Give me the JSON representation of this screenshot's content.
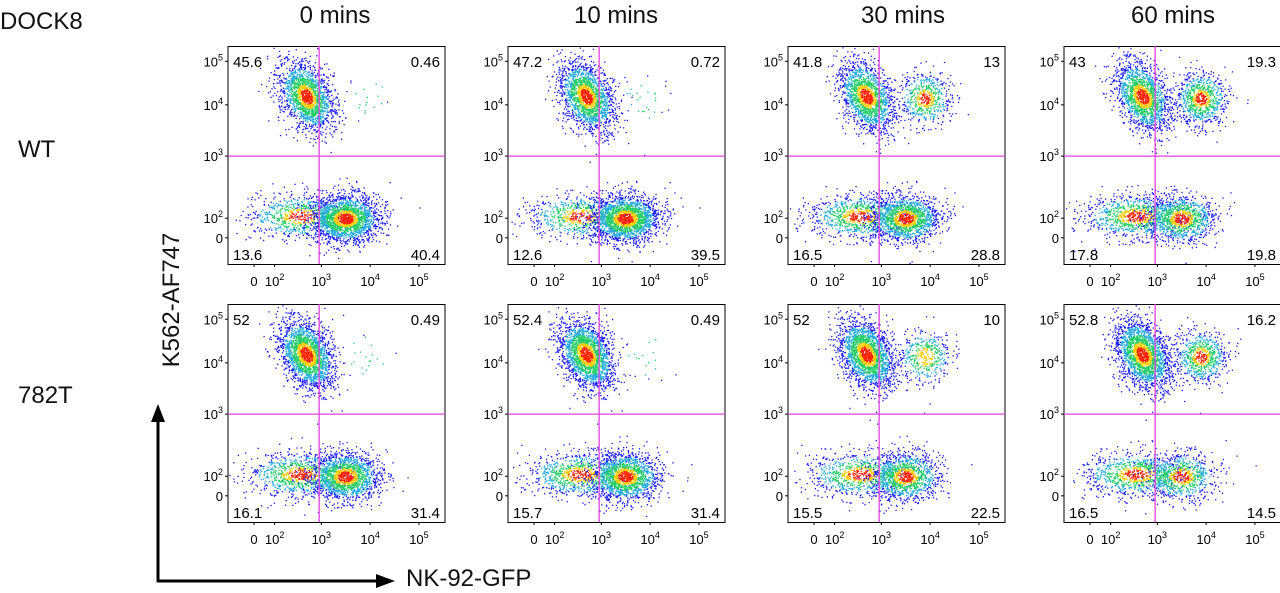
{
  "figure": {
    "genotype_header": "DOCK8",
    "rows": [
      "WT",
      "782T"
    ],
    "timepoints": [
      "0 mins",
      "10 mins",
      "30 mins",
      "60 mins"
    ],
    "y_axis_label": "K562-AF747",
    "x_axis_label": "NK-92-GFP"
  },
  "colors": {
    "gate_line": "#e040e0",
    "axis": "#000000",
    "density_low": "#1a1aff",
    "density_mid": "#22cc66",
    "density_high": "#ff2200"
  },
  "chart_data": {
    "type": "scatter",
    "description_type": "flow cytometry density plots with quadrant gates",
    "x_ticks": [
      "0",
      "10^2",
      "10^3",
      "10^4",
      "10^5"
    ],
    "y_ticks": [
      "0",
      "10^2",
      "10^3",
      "10^4",
      "10^5"
    ],
    "x_scale": "biexponential",
    "y_scale": "biexponential",
    "panels": [
      {
        "row": "WT",
        "time": "0 mins",
        "quadrants": {
          "UL": "45.6",
          "UR": "0.46",
          "LL": "13.6",
          "LR": "40.4"
        }
      },
      {
        "row": "WT",
        "time": "10 mins",
        "quadrants": {
          "UL": "47.2",
          "UR": "0.72",
          "LL": "12.6",
          "LR": "39.5"
        }
      },
      {
        "row": "WT",
        "time": "30 mins",
        "quadrants": {
          "UL": "41.8",
          "UR": "13",
          "LL": "16.5",
          "LR": "28.8"
        }
      },
      {
        "row": "WT",
        "time": "60 mins",
        "quadrants": {
          "UL": "43",
          "UR": "19.3",
          "LL": "17.8",
          "LR": "19.8"
        }
      },
      {
        "row": "782T",
        "time": "0 mins",
        "quadrants": {
          "UL": "52",
          "UR": "0.49",
          "LL": "16.1",
          "LR": "31.4"
        }
      },
      {
        "row": "782T",
        "time": "10 mins",
        "quadrants": {
          "UL": "52.4",
          "UR": "0.49",
          "LL": "15.7",
          "LR": "31.4"
        }
      },
      {
        "row": "782T",
        "time": "30 mins",
        "quadrants": {
          "UL": "52",
          "UR": "10",
          "LL": "15.5",
          "LR": "22.5"
        }
      },
      {
        "row": "782T",
        "time": "60 mins",
        "quadrants": {
          "UL": "52.8",
          "UR": "16.2",
          "LL": "16.5",
          "LR": "14.5"
        }
      }
    ]
  }
}
